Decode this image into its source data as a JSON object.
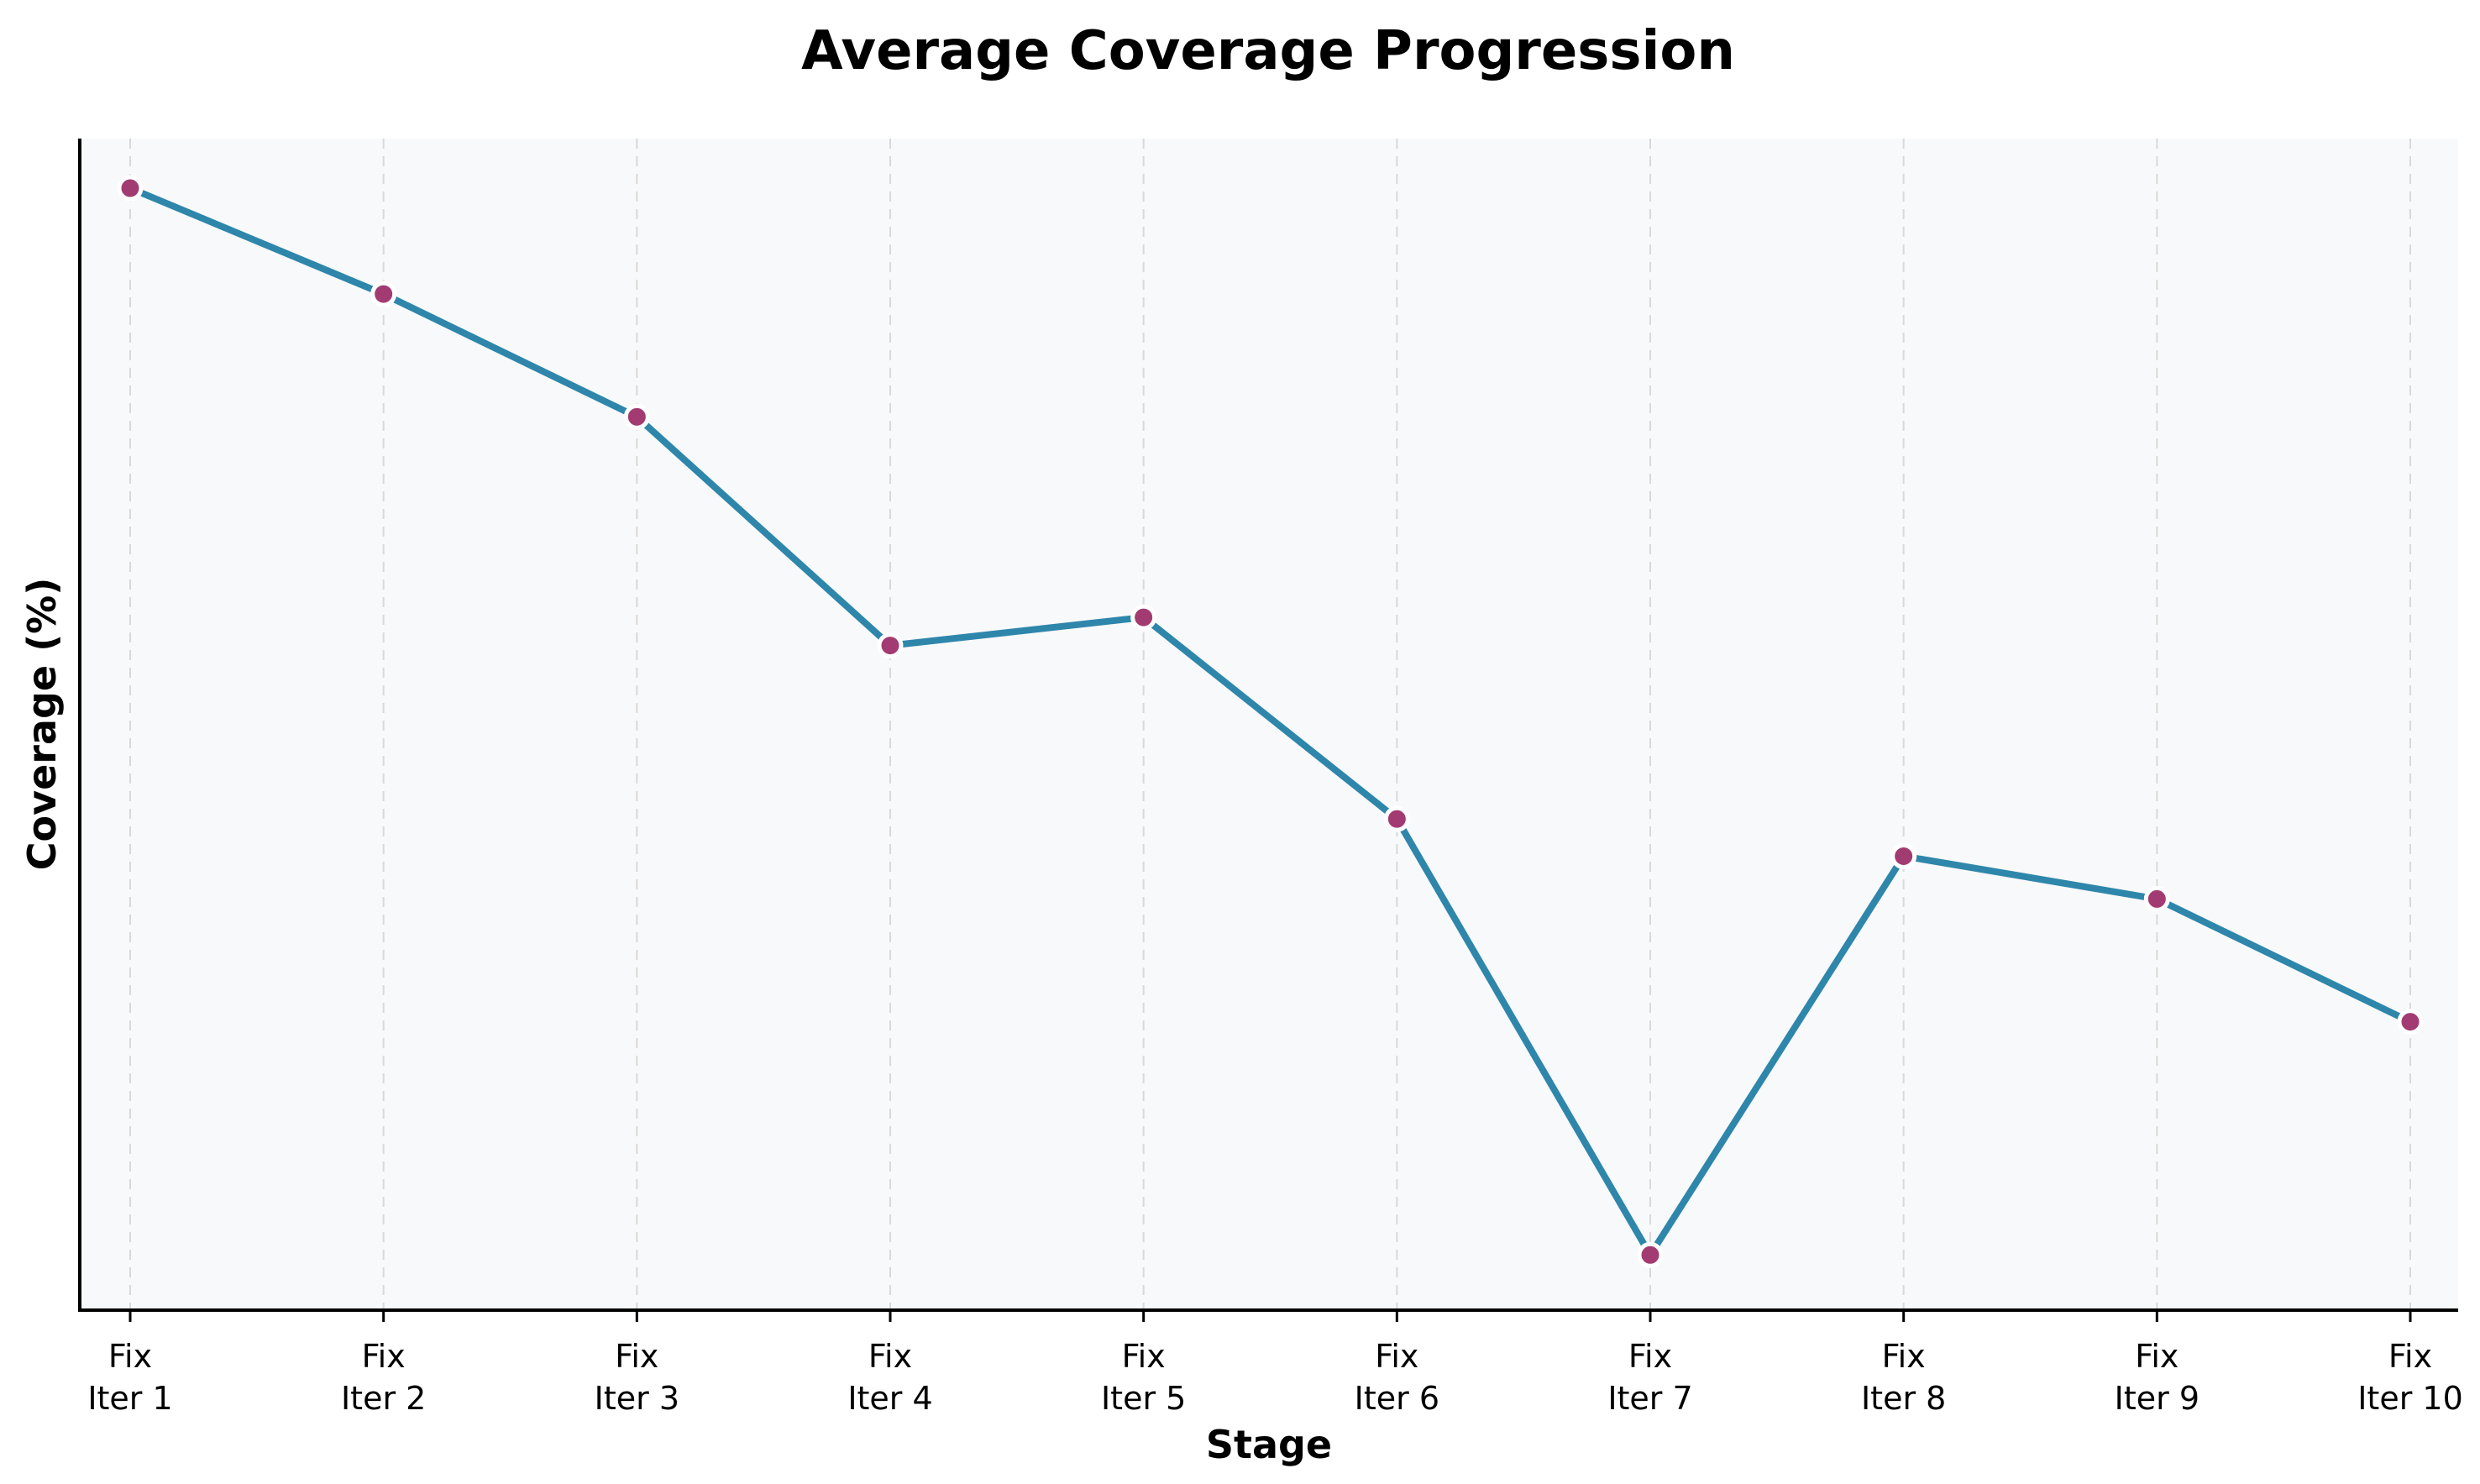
{
  "chart_data": {
    "type": "line",
    "title": "Average Coverage Progression",
    "xlabel": "Stage",
    "ylabel": "Coverage (%)",
    "categories": [
      [
        "Fix",
        "Iter 1"
      ],
      [
        "Fix",
        "Iter 2"
      ],
      [
        "Fix",
        "Iter 3"
      ],
      [
        "Fix",
        "Iter 4"
      ],
      [
        "Fix",
        "Iter 5"
      ],
      [
        "Fix",
        "Iter 6"
      ],
      [
        "Fix",
        "Iter 7"
      ],
      [
        "Fix",
        "Iter 8"
      ],
      [
        "Fix",
        "Iter 9"
      ],
      [
        "Fix",
        "Iter 10"
      ]
    ],
    "series": [
      {
        "values": [
          0.956,
          0.862,
          0.753,
          0.55,
          0.575,
          0.396,
          0.009,
          0.363,
          0.325,
          0.216
        ]
      }
    ],
    "ylim": [
      -0.04,
      1.0
    ],
    "y_ticks_shown": false,
    "grid": "vertical dashed",
    "legend": "none",
    "colors": {
      "line": "#2e86ab",
      "marker_fill": "#a23b72",
      "marker_edge": "#ffffff",
      "plot_background": "#f8f9fa",
      "grid": "#d9d9d9",
      "axis": "#000000"
    }
  }
}
